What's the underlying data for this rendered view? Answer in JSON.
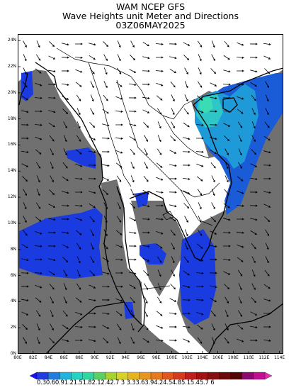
{
  "title": {
    "line1": "WAM NCEP GFS",
    "line2": "Wave Heights unit Meter and Directions",
    "line3": "03Z06MAY2025"
  },
  "map": {
    "lat_ticks": [
      "0N",
      "2N",
      "4N",
      "6N",
      "8N",
      "10N",
      "12N",
      "14N",
      "16N",
      "18N",
      "20N",
      "22N",
      "24N"
    ],
    "lon_ticks": [
      "80E",
      "82E",
      "84E",
      "86E",
      "88E",
      "90E",
      "92E",
      "94E",
      "96E",
      "98E",
      "100E",
      "102E",
      "104E",
      "106E",
      "108E",
      "110E",
      "112E",
      "114E"
    ],
    "lon_range": [
      80,
      114.5
    ],
    "lat_range": [
      0,
      24.5
    ],
    "colors": {
      "land": "#707070",
      "ocean_0_3": "#1a3be0",
      "ocean_0_6": "#1a5bd8",
      "ocean_0_9": "#1f9ad8",
      "ocean_1_2": "#2ec6c6",
      "ocean_1_5": "#3adcb4",
      "coast": "#000000"
    }
  },
  "colorbar": {
    "labels": "0.30.60.91.21.51.82.12.42.7  3  3.33.63.94.24.54.85.15.45.7  6",
    "colors": [
      "#1f0ff0",
      "#1f3ce0",
      "#1f7de0",
      "#1fb4e0",
      "#23d4c4",
      "#2ed6a0",
      "#5ad060",
      "#a6d32e",
      "#d9d02a",
      "#e6b41e",
      "#e6961e",
      "#e6781e",
      "#e0561e",
      "#d33a1e",
      "#c01e1e",
      "#a21212",
      "#850f0f",
      "#6a0a0a",
      "#520606",
      "#8a0a70",
      "#c01090",
      "#e02cb0"
    ]
  }
}
